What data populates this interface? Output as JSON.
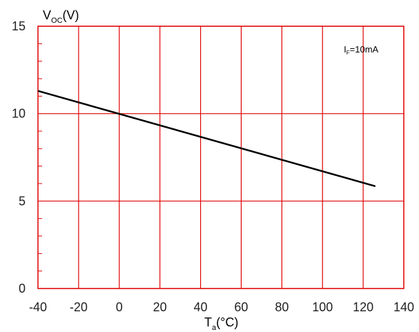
{
  "chart_data": {
    "type": "line",
    "title": "",
    "xlabel": {
      "main": "T",
      "sub": "a",
      "suffix": "(°C)"
    },
    "ylabel": {
      "main": "V",
      "sub": "OC",
      "suffix": "(V)"
    },
    "xlim": [
      -40,
      140
    ],
    "ylim": [
      0,
      15
    ],
    "xticks": [
      -40,
      -20,
      0,
      20,
      40,
      60,
      80,
      100,
      120,
      140
    ],
    "yticks": [
      0,
      5,
      10,
      15
    ],
    "grid": true,
    "grid_color": "#e00000",
    "line_color": "#000000",
    "series": [
      {
        "x": [
          -40,
          126
        ],
        "y": [
          11.3,
          5.85
        ]
      }
    ],
    "annotations": [
      {
        "main": "I",
        "sub": "F",
        "suffix": "=10mA",
        "x": 119,
        "y": 13.5
      }
    ]
  }
}
